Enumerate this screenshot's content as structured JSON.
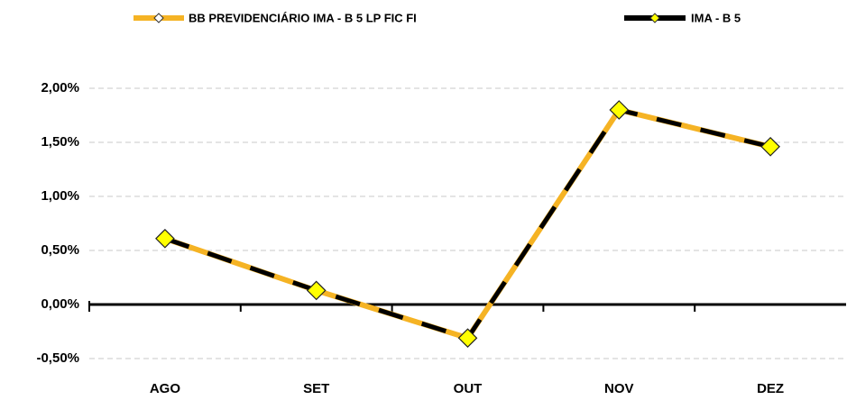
{
  "chart_data": {
    "type": "line",
    "categories": [
      "AGO",
      "SET",
      "OUT",
      "NOV",
      "DEZ"
    ],
    "series": [
      {
        "name": "BB PREVIDENCIÁRIO IMA - B 5 LP FIC FI",
        "color": "#f5b324",
        "values": [
          0.61,
          0.13,
          -0.31,
          1.8,
          1.46
        ]
      },
      {
        "name": "IMA - B 5",
        "color": "#000000",
        "values": [
          0.61,
          0.13,
          -0.31,
          1.8,
          1.46
        ]
      }
    ],
    "ylim": [
      -0.5,
      2.0
    ],
    "yticks": [
      {
        "value": -0.5,
        "label": "-0,50%"
      },
      {
        "value": 0,
        "label": "0,00%"
      },
      {
        "value": 0.5,
        "label": "0,50%"
      },
      {
        "value": 1.0,
        "label": "1,00%"
      },
      {
        "value": 1.5,
        "label": "1,50%"
      },
      {
        "value": 2.0,
        "label": "2,00%"
      }
    ],
    "grid": true,
    "marker_color": "#ffff00"
  }
}
